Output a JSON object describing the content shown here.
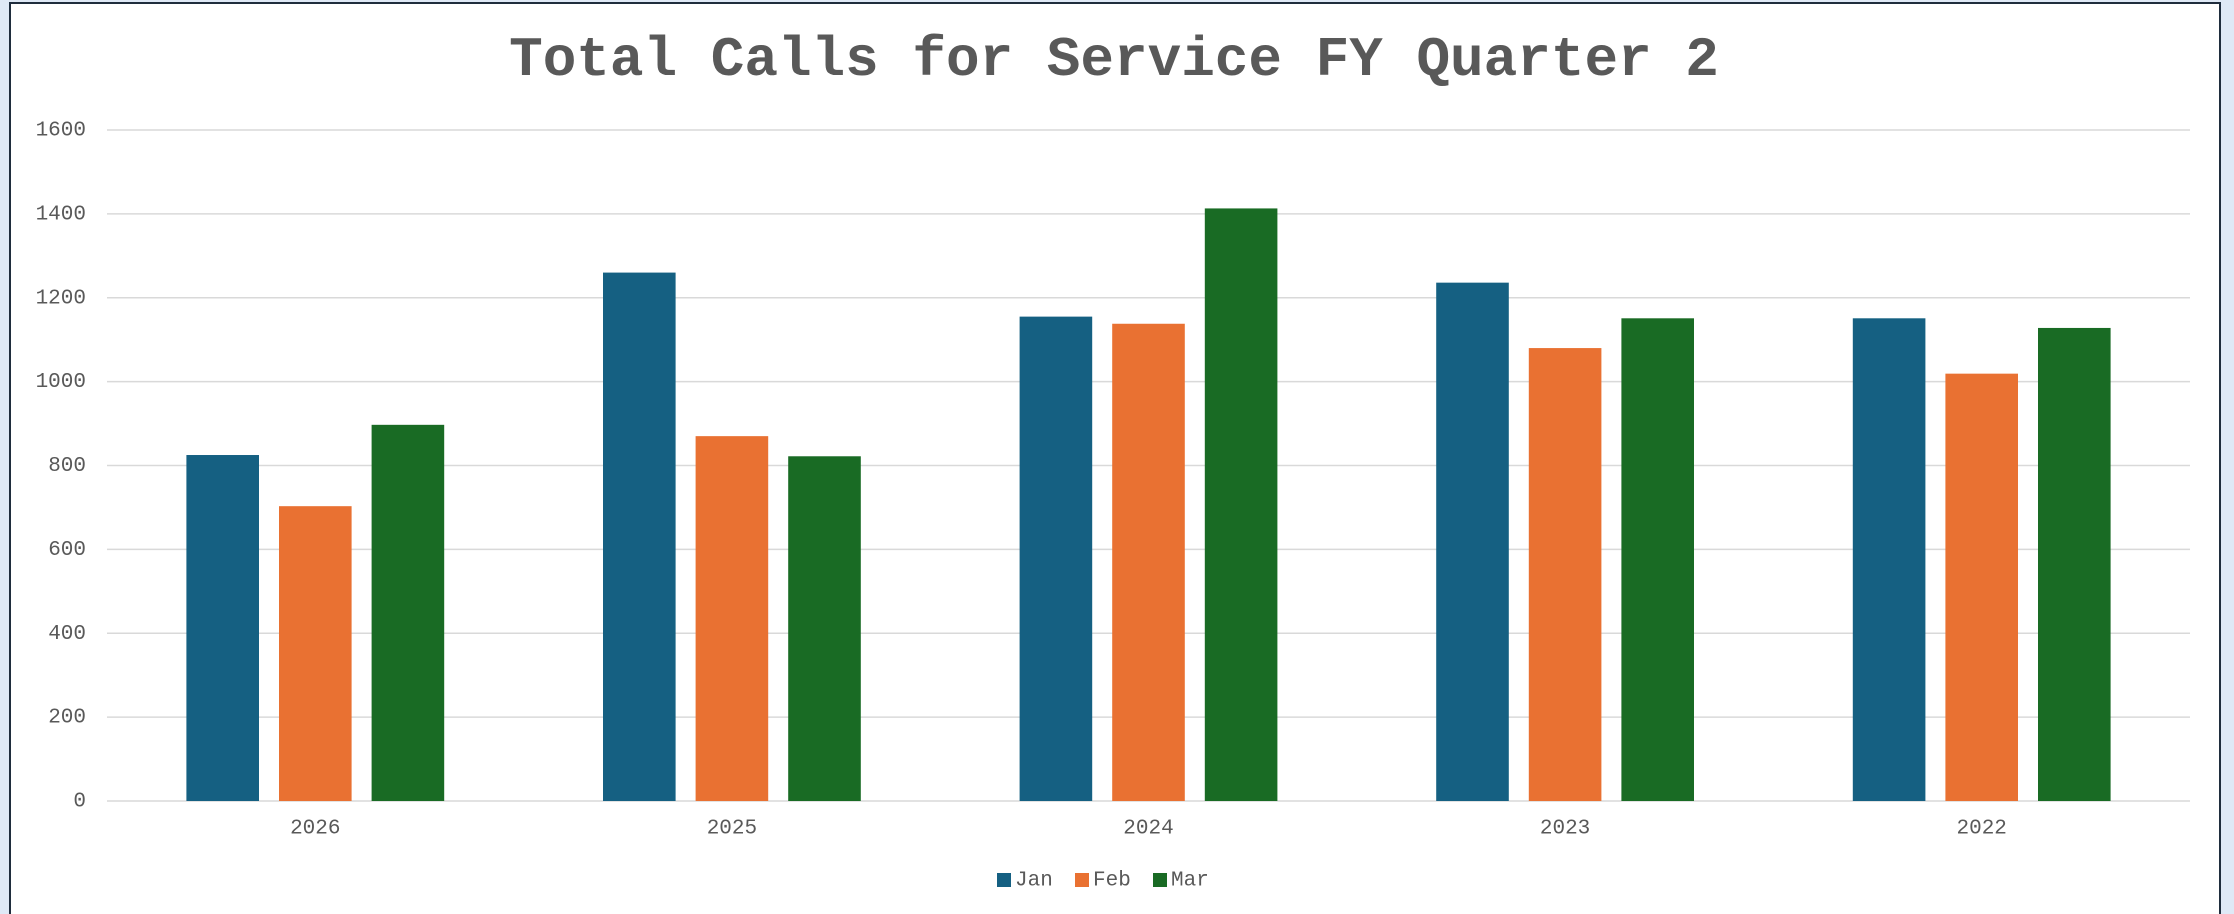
{
  "chart_data": {
    "type": "bar",
    "title": "Total Calls for Service FY Quarter 2",
    "categories": [
      "2026",
      "2025",
      "2024",
      "2023",
      "2022"
    ],
    "series": [
      {
        "name": "Jan",
        "color": "#156082",
        "values": [
          825,
          1260,
          1155,
          1236,
          1151
        ]
      },
      {
        "name": "Feb",
        "color": "#e97132",
        "values": [
          703,
          870,
          1138,
          1080,
          1019
        ]
      },
      {
        "name": "Mar",
        "color": "#196b24",
        "values": [
          897,
          822,
          1413,
          1151,
          1128
        ]
      }
    ],
    "ylim": [
      0,
      1600
    ],
    "yticks": [
      0,
      200,
      400,
      600,
      800,
      1000,
      1200,
      1400,
      1600
    ],
    "grid": true,
    "legend": "bottom"
  }
}
